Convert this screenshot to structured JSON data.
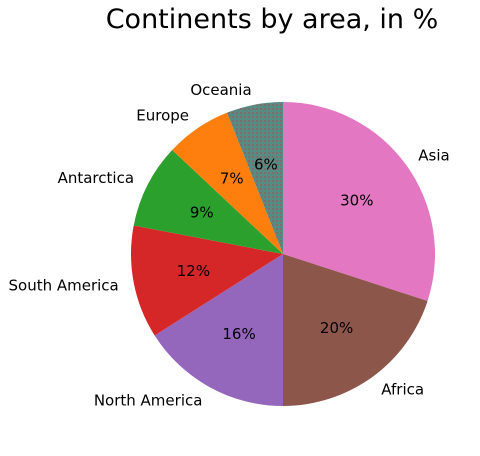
{
  "chart_data": {
    "type": "pie",
    "title": "Continents by area, in %",
    "categories": [
      "Asia",
      "Africa",
      "North America",
      "South America",
      "Antarctica",
      "Europe",
      "Oceania"
    ],
    "values": [
      30,
      20,
      16,
      12,
      9,
      7,
      6
    ],
    "value_labels": [
      "30%",
      "20%",
      "16%",
      "12%",
      "9%",
      "7%",
      "6%"
    ],
    "colors": [
      "#e377c2",
      "#8c564b",
      "#9467bd",
      "#d62728",
      "#2ca02c",
      "#ff7f0e",
      "#17becf"
    ],
    "start_angle_deg": 90,
    "direction": "clockwise",
    "legend": "none",
    "grid": false
  }
}
